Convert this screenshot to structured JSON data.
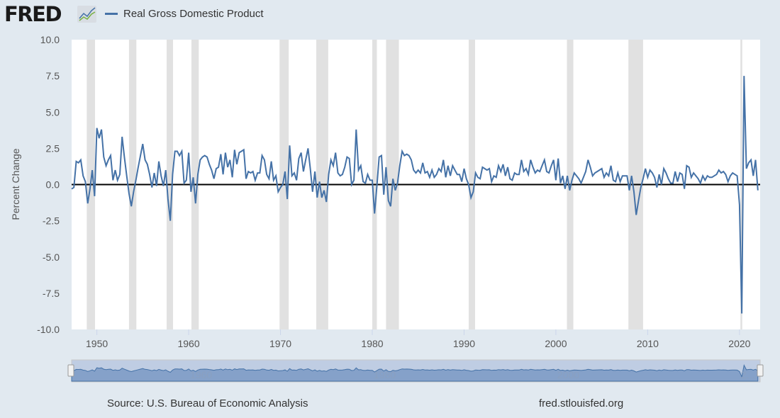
{
  "header": {
    "logo": "FRED",
    "legend_label": "Real Gross Domestic Product"
  },
  "footer": {
    "source": "Source: U.S. Bureau of Economic Analysis",
    "site": "fred.stlouisfed.org"
  },
  "colors": {
    "series": "#4572a7",
    "recession": "#e1e1e1",
    "zero_line": "#000000",
    "navigator_fill": "#85a1c9"
  },
  "chart_data": {
    "type": "line",
    "title": "Real Gross Domestic Product",
    "ylabel": "Percent Change",
    "xlabel": "",
    "ylim": [
      -10,
      10
    ],
    "xlim": [
      1947.25,
      2022.25
    ],
    "yticks": [
      "10.0",
      "7.5",
      "5.0",
      "2.5",
      "0.0",
      "-2.5",
      "-5.0",
      "-7.5",
      "-10.0"
    ],
    "ytick_values": [
      10,
      7.5,
      5,
      2.5,
      0,
      -2.5,
      -5,
      -7.5,
      -10
    ],
    "xticks": [
      "1950",
      "1960",
      "1970",
      "1980",
      "1990",
      "2000",
      "2010",
      "2020"
    ],
    "navigator_ticks": [
      "1960",
      "1980",
      "2000",
      "2..."
    ],
    "start": "1947Q2",
    "frequency": "quarterly",
    "recessions": [
      [
        1948.9,
        1949.8
      ],
      [
        1953.5,
        1954.3
      ],
      [
        1957.6,
        1958.3
      ],
      [
        1960.3,
        1961.1
      ],
      [
        1969.9,
        1970.9
      ],
      [
        1973.9,
        1975.2
      ],
      [
        1980.0,
        1980.5
      ],
      [
        1981.5,
        1982.9
      ],
      [
        1990.5,
        1991.2
      ],
      [
        2001.2,
        2001.9
      ],
      [
        2007.9,
        2009.5
      ],
      [
        2020.1,
        2020.3
      ]
    ],
    "values": [
      -0.3,
      -0.2,
      1.6,
      1.5,
      1.7,
      0.6,
      0.2,
      -1.3,
      -0.3,
      1.0,
      -0.8,
      3.9,
      3.2,
      3.8,
      1.9,
      1.3,
      1.7,
      2.0,
      0.3,
      1.0,
      0.3,
      0.7,
      3.3,
      1.9,
      0.6,
      -0.6,
      -1.5,
      -0.5,
      0.3,
      1.2,
      2.0,
      2.8,
      1.7,
      1.4,
      0.7,
      -0.2,
      0.8,
      -0.1,
      1.6,
      0.6,
      -0.1,
      1.0,
      -1.0,
      -2.5,
      0.7,
      2.3,
      2.3,
      2.0,
      2.3,
      0.1,
      0.3,
      2.2,
      -0.5,
      0.5,
      -1.3,
      0.7,
      1.7,
      1.9,
      2.0,
      1.9,
      1.4,
      1.0,
      0.4,
      1.1,
      1.2,
      2.1,
      0.7,
      2.2,
      1.2,
      1.7,
      0.5,
      2.4,
      1.4,
      2.2,
      2.3,
      2.4,
      0.4,
      0.9,
      0.8,
      0.9,
      0.3,
      0.8,
      0.8,
      2.0,
      1.7,
      0.7,
      0.4,
      1.6,
      0.3,
      0.6,
      -0.5,
      -0.2,
      0.0,
      0.9,
      -1.0,
      2.7,
      0.6,
      0.8,
      0.3,
      1.8,
      2.2,
      0.9,
      1.7,
      2.5,
      1.1,
      -0.5,
      0.9,
      -0.9,
      0.2,
      -0.9,
      -0.4,
      -1.2,
      0.7,
      1.7,
      1.3,
      2.2,
      0.8,
      0.6,
      0.7,
      1.2,
      1.9,
      1.8,
      0.0,
      0.3,
      3.8,
      1.0,
      1.3,
      0.2,
      0.1,
      0.7,
      0.3,
      0.3,
      -2.0,
      -0.1,
      1.9,
      2.0,
      -0.7,
      1.2,
      -1.1,
      -1.5,
      0.4,
      -0.4,
      0.1,
      1.3,
      2.3,
      2.0,
      2.1,
      2.0,
      1.7,
      1.0,
      0.8,
      1.0,
      0.8,
      1.5,
      0.8,
      0.9,
      0.5,
      1.0,
      0.5,
      0.7,
      1.1,
      0.9,
      1.7,
      0.5,
      1.3,
      0.6,
      1.3,
      1.0,
      0.7,
      0.7,
      0.2,
      1.1,
      0.4,
      0.0,
      -0.9,
      -0.5,
      0.8,
      0.5,
      0.4,
      1.2,
      1.1,
      1.0,
      1.1,
      0.2,
      0.6,
      0.5,
      1.3,
      0.9,
      1.4,
      0.6,
      1.2,
      0.4,
      0.3,
      0.8,
      0.7,
      0.7,
      1.7,
      0.9,
      1.1,
      0.7,
      1.7,
      1.2,
      0.8,
      1.0,
      0.9,
      1.3,
      1.7,
      0.9,
      0.8,
      1.3,
      1.7,
      0.3,
      1.8,
      0.1,
      0.6,
      -0.3,
      0.6,
      -0.4,
      0.3,
      0.8,
      0.6,
      0.4,
      0.1,
      0.5,
      0.9,
      1.7,
      1.2,
      0.6,
      0.8,
      0.9,
      1.0,
      1.1,
      0.5,
      0.8,
      0.6,
      1.3,
      0.3,
      0.2,
      0.8,
      0.2,
      0.6,
      0.6,
      0.6,
      -0.4,
      0.6,
      -0.5,
      -2.1,
      -1.1,
      -0.2,
      0.4,
      1.1,
      0.5,
      1.0,
      0.8,
      0.5,
      -0.2,
      0.7,
      0.0,
      1.1,
      0.8,
      0.4,
      0.1,
      0.1,
      0.9,
      0.2,
      0.8,
      0.7,
      -0.3,
      1.3,
      1.2,
      0.5,
      0.8,
      0.6,
      0.4,
      0.1,
      0.6,
      0.3,
      0.6,
      0.5,
      0.5,
      0.6,
      0.7,
      1.0,
      0.8,
      0.9,
      0.7,
      0.2,
      0.6,
      0.8,
      0.7,
      0.6,
      -1.4,
      -8.9,
      7.5,
      1.1,
      1.5,
      1.7,
      0.6,
      1.7,
      -0.4
    ]
  }
}
